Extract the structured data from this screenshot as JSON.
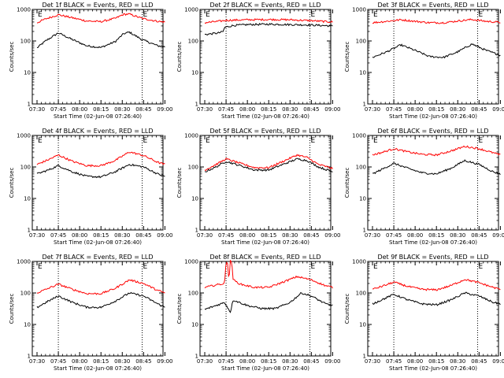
{
  "chart_data": [
    {
      "type": "line",
      "title": "Det 1f BLACK = Events, RED = LLD",
      "xlabel": "Start Time (02-Jun-08 07:26:40)",
      "ylabel": "Counts/sec",
      "y_scale": "log",
      "ylim": [
        1,
        1000
      ],
      "y_ticks": [
        "1",
        "10",
        "100",
        "1000"
      ],
      "x_ticks": [
        "07:30",
        "07:45",
        "08:00",
        "08:15",
        "08:30",
        "08:45",
        "09:00"
      ],
      "xlim_minutes": [
        0,
        92
      ],
      "dotted_lines_at": [
        "07:45",
        "08:44"
      ],
      "markers": [
        {
          "text": "E",
          "at": "07:30"
        },
        {
          "text": "E",
          "at": "08:44"
        }
      ],
      "series": [
        {
          "name": "BLACK = Events",
          "color": "#000000",
          "x": [
            "07:30",
            "07:36",
            "07:45",
            "07:55",
            "08:05",
            "08:15",
            "08:25",
            "08:31",
            "08:35",
            "08:44",
            "08:55",
            "09:00"
          ],
          "y": [
            60,
            100,
            180,
            110,
            70,
            62,
            95,
            170,
            190,
            110,
            70,
            65
          ]
        },
        {
          "name": "RED = LLD",
          "color": "#ff0000",
          "x": [
            "07:30",
            "07:36",
            "07:45",
            "07:55",
            "08:05",
            "08:15",
            "08:25",
            "08:31",
            "08:35",
            "08:44",
            "08:55",
            "09:00"
          ],
          "y": [
            380,
            500,
            680,
            540,
            430,
            410,
            520,
            700,
            710,
            520,
            420,
            400
          ]
        }
      ]
    },
    {
      "type": "line",
      "title": "Det 2f BLACK = Events, RED = LLD",
      "xlabel": "Start Time (02-Jun-08 07:26:40)",
      "ylabel": "Counts/sec",
      "y_scale": "log",
      "ylim": [
        1,
        1000
      ],
      "y_ticks": [
        "1",
        "10",
        "100",
        "1000"
      ],
      "x_ticks": [
        "07:30",
        "07:45",
        "08:00",
        "08:15",
        "08:30",
        "08:45",
        "09:00"
      ],
      "xlim_minutes": [
        0,
        92
      ],
      "dotted_lines_at": [
        "07:45",
        "08:44"
      ],
      "markers": [
        {
          "text": "E",
          "at": "07:30"
        },
        {
          "text": "E",
          "at": "08:44"
        }
      ],
      "series": [
        {
          "name": "BLACK = Events",
          "color": "#000000",
          "x": [
            "07:30",
            "07:40",
            "07:43",
            "07:44",
            "07:50",
            "08:00",
            "08:15",
            "08:30",
            "08:45",
            "09:00"
          ],
          "y": [
            160,
            180,
            200,
            270,
            310,
            330,
            340,
            330,
            320,
            300
          ]
        },
        {
          "name": "RED = LLD",
          "color": "#ff0000",
          "x": [
            "07:30",
            "07:40",
            "07:45",
            "08:00",
            "08:15",
            "08:30",
            "08:45",
            "09:00"
          ],
          "y": [
            380,
            420,
            450,
            470,
            480,
            470,
            440,
            400
          ]
        }
      ]
    },
    {
      "type": "line",
      "title": "Det 3f BLACK = Events, RED = LLD",
      "xlabel": "Start Time (02-Jun-08 07:26:40)",
      "ylabel": "Counts/sec",
      "y_scale": "log",
      "ylim": [
        1,
        1000
      ],
      "y_ticks": [
        "1",
        "10",
        "100",
        "1000"
      ],
      "x_ticks": [
        "07:30",
        "07:45",
        "08:00",
        "08:15",
        "08:30",
        "08:45",
        "09:00"
      ],
      "xlim_minutes": [
        0,
        92
      ],
      "dotted_lines_at": [
        "07:45",
        "08:44"
      ],
      "markers": [
        {
          "text": "E",
          "at": "07:30"
        },
        {
          "text": "E",
          "at": "08:44"
        }
      ],
      "series": [
        {
          "name": "BLACK = Events",
          "color": "#000000",
          "x": [
            "07:30",
            "07:40",
            "07:50",
            "08:00",
            "08:10",
            "08:20",
            "08:30",
            "08:40",
            "08:50",
            "09:00"
          ],
          "y": [
            30,
            45,
            75,
            50,
            32,
            30,
            45,
            80,
            50,
            35
          ]
        },
        {
          "name": "RED = LLD",
          "color": "#ff0000",
          "x": [
            "07:30",
            "07:40",
            "07:50",
            "08:00",
            "08:10",
            "08:20",
            "08:30",
            "08:40",
            "08:50",
            "09:00"
          ],
          "y": [
            380,
            420,
            470,
            420,
            380,
            380,
            430,
            480,
            420,
            390
          ]
        }
      ]
    },
    {
      "type": "line",
      "title": "Det 4f BLACK = Events, RED = LLD",
      "xlabel": "Start Time (02-Jun-08 07:26:40)",
      "ylabel": "Counts/sec",
      "y_scale": "log",
      "ylim": [
        1,
        1000
      ],
      "y_ticks": [
        "1",
        "10",
        "100",
        "1000"
      ],
      "x_ticks": [
        "07:30",
        "07:45",
        "08:00",
        "08:15",
        "08:30",
        "08:45",
        "09:00"
      ],
      "xlim_minutes": [
        0,
        92
      ],
      "dotted_lines_at": [
        "07:45",
        "08:44"
      ],
      "markers": [
        {
          "text": "E",
          "at": "07:30"
        },
        {
          "text": "E",
          "at": "08:44"
        }
      ],
      "series": [
        {
          "name": "BLACK = Events",
          "color": "#000000",
          "x": [
            "07:30",
            "07:38",
            "07:45",
            "07:55",
            "08:05",
            "08:15",
            "08:25",
            "08:35",
            "08:45",
            "08:55",
            "09:00"
          ],
          "y": [
            60,
            80,
            110,
            70,
            50,
            48,
            70,
            120,
            100,
            60,
            50
          ]
        },
        {
          "name": "RED = LLD",
          "color": "#ff0000",
          "x": [
            "07:30",
            "07:38",
            "07:45",
            "07:55",
            "08:05",
            "08:15",
            "08:25",
            "08:35",
            "08:45",
            "08:55",
            "09:00"
          ],
          "y": [
            120,
            170,
            240,
            150,
            110,
            110,
            160,
            300,
            230,
            140,
            120
          ]
        }
      ]
    },
    {
      "type": "line",
      "title": "Det 5f BLACK = Events, RED = LLD",
      "xlabel": "Start Time (02-Jun-08 07:26:40)",
      "ylabel": "Counts/sec",
      "y_scale": "log",
      "ylim": [
        1,
        1000
      ],
      "y_ticks": [
        "1",
        "10",
        "100",
        "1000"
      ],
      "x_ticks": [
        "07:30",
        "07:45",
        "08:00",
        "08:15",
        "08:30",
        "08:45",
        "09:00"
      ],
      "xlim_minutes": [
        0,
        92
      ],
      "dotted_lines_at": [
        "07:45",
        "08:44"
      ],
      "markers": [
        {
          "text": "E",
          "at": "07:30"
        },
        {
          "text": "E",
          "at": "08:44"
        }
      ],
      "series": [
        {
          "name": "BLACK = Events",
          "color": "#000000",
          "x": [
            "07:30",
            "07:38",
            "07:45",
            "07:55",
            "08:05",
            "08:15",
            "08:25",
            "08:35",
            "08:42",
            "08:50",
            "09:00"
          ],
          "y": [
            70,
            100,
            150,
            110,
            80,
            80,
            120,
            180,
            160,
            100,
            70
          ]
        },
        {
          "name": "RED = LLD",
          "color": "#ff0000",
          "x": [
            "07:30",
            "07:38",
            "07:45",
            "07:55",
            "08:05",
            "08:15",
            "08:25",
            "08:35",
            "08:42",
            "08:50",
            "09:00"
          ],
          "y": [
            80,
            120,
            180,
            130,
            95,
            95,
            150,
            240,
            200,
            120,
            90
          ]
        }
      ]
    },
    {
      "type": "line",
      "title": "Det 6f BLACK = Events, RED = LLD",
      "xlabel": "Start Time (02-Jun-08 07:26:40)",
      "ylabel": "Counts/sec",
      "y_scale": "log",
      "ylim": [
        1,
        1000
      ],
      "y_ticks": [
        "1",
        "10",
        "100",
        "1000"
      ],
      "x_ticks": [
        "07:30",
        "07:45",
        "08:00",
        "08:15",
        "08:30",
        "08:45",
        "09:00"
      ],
      "xlim_minutes": [
        0,
        92
      ],
      "dotted_lines_at": [
        "07:45",
        "08:44"
      ],
      "markers": [
        {
          "text": "E",
          "at": "07:30"
        },
        {
          "text": "E",
          "at": "08:44"
        }
      ],
      "series": [
        {
          "name": "BLACK = Events",
          "color": "#000000",
          "x": [
            "07:30",
            "07:38",
            "07:45",
            "07:55",
            "08:05",
            "08:15",
            "08:25",
            "08:35",
            "08:45",
            "08:55",
            "09:00"
          ],
          "y": [
            60,
            90,
            130,
            90,
            65,
            60,
            90,
            160,
            120,
            70,
            60
          ]
        },
        {
          "name": "RED = LLD",
          "color": "#ff0000",
          "x": [
            "07:30",
            "07:38",
            "07:45",
            "07:55",
            "08:05",
            "08:15",
            "08:25",
            "08:35",
            "08:45",
            "08:55",
            "09:00"
          ],
          "y": [
            240,
            300,
            380,
            300,
            250,
            240,
            320,
            450,
            380,
            280,
            240
          ]
        }
      ]
    },
    {
      "type": "line",
      "title": "Det 7f BLACK = Events, RED = LLD",
      "xlabel": "Start Time (02-Jun-08 07:26:40)",
      "ylabel": "Counts/sec",
      "y_scale": "log",
      "ylim": [
        1,
        1000
      ],
      "y_ticks": [
        "1",
        "10",
        "100",
        "1000"
      ],
      "x_ticks": [
        "07:30",
        "07:45",
        "08:00",
        "08:15",
        "08:30",
        "08:45",
        "09:00"
      ],
      "xlim_minutes": [
        0,
        92
      ],
      "dotted_lines_at": [
        "07:45",
        "08:44"
      ],
      "markers": [
        {
          "text": "E",
          "at": "07:30"
        },
        {
          "text": "E",
          "at": "08:44"
        }
      ],
      "series": [
        {
          "name": "BLACK = Events",
          "color": "#000000",
          "x": [
            "07:30",
            "07:38",
            "07:45",
            "07:55",
            "08:05",
            "08:15",
            "08:25",
            "08:35",
            "08:45",
            "08:55",
            "09:00"
          ],
          "y": [
            35,
            55,
            80,
            50,
            35,
            35,
            55,
            100,
            80,
            45,
            35
          ]
        },
        {
          "name": "RED = LLD",
          "color": "#ff0000",
          "x": [
            "07:30",
            "07:38",
            "07:45",
            "07:55",
            "08:05",
            "08:15",
            "08:25",
            "08:35",
            "08:45",
            "08:55",
            "09:00"
          ],
          "y": [
            100,
            140,
            190,
            130,
            95,
            95,
            140,
            260,
            200,
            120,
            100
          ]
        }
      ]
    },
    {
      "type": "line",
      "title": "Det 8f BLACK = Events, RED = LLD",
      "xlabel": "Start Time (02-Jun-08 07:26:40)",
      "ylabel": "Counts/sec",
      "y_scale": "log",
      "ylim": [
        1,
        1000
      ],
      "y_ticks": [
        "1",
        "10",
        "100",
        "1000"
      ],
      "x_ticks": [
        "07:30",
        "07:45",
        "08:00",
        "08:15",
        "08:30",
        "08:45",
        "09:00"
      ],
      "xlim_minutes": [
        0,
        92
      ],
      "dotted_lines_at": [
        "07:45",
        "08:44"
      ],
      "markers": [
        {
          "text": "E",
          "at": "07:30"
        },
        {
          "text": "E",
          "at": "08:44"
        }
      ],
      "series": [
        {
          "name": "BLACK = Events",
          "color": "#000000",
          "x": [
            "07:30",
            "07:38",
            "07:44",
            "07:46",
            "07:48",
            "07:50",
            "07:52",
            "08:00",
            "08:10",
            "08:20",
            "08:30",
            "08:38",
            "08:45",
            "08:55",
            "09:00"
          ],
          "y": [
            30,
            40,
            50,
            35,
            25,
            60,
            55,
            40,
            32,
            32,
            50,
            100,
            80,
            45,
            40
          ]
        },
        {
          "name": "RED = LLD",
          "color": "#ff0000",
          "x": [
            "07:30",
            "07:38",
            "07:44",
            "07:45",
            "07:46",
            "07:47",
            "07:48",
            "07:49",
            "07:50",
            "07:55",
            "08:05",
            "08:15",
            "08:25",
            "08:35",
            "08:45",
            "08:55",
            "09:00"
          ],
          "y": [
            150,
            180,
            200,
            1000,
            1000,
            230,
            1000,
            1000,
            260,
            190,
            150,
            150,
            220,
            330,
            260,
            170,
            150
          ]
        }
      ]
    },
    {
      "type": "line",
      "title": "Det 9f BLACK = Events, RED = LLD",
      "xlabel": "Start Time (02-Jun-08 07:26:40)",
      "ylabel": "Counts/sec",
      "y_scale": "log",
      "ylim": [
        1,
        1000
      ],
      "y_ticks": [
        "1",
        "10",
        "100",
        "1000"
      ],
      "x_ticks": [
        "07:30",
        "07:45",
        "08:00",
        "08:15",
        "08:30",
        "08:45",
        "09:00"
      ],
      "xlim_minutes": [
        0,
        92
      ],
      "dotted_lines_at": [
        "07:45",
        "08:44"
      ],
      "markers": [
        {
          "text": "E",
          "at": "07:30"
        },
        {
          "text": "E",
          "at": "08:44"
        }
      ],
      "series": [
        {
          "name": "BLACK = Events",
          "color": "#000000",
          "x": [
            "07:30",
            "07:38",
            "07:45",
            "07:55",
            "08:05",
            "08:15",
            "08:25",
            "08:35",
            "08:45",
            "08:55",
            "09:00"
          ],
          "y": [
            45,
            65,
            90,
            60,
            45,
            42,
            60,
            100,
            80,
            50,
            45
          ]
        },
        {
          "name": "RED = LLD",
          "color": "#ff0000",
          "x": [
            "07:30",
            "07:38",
            "07:45",
            "07:55",
            "08:05",
            "08:15",
            "08:25",
            "08:35",
            "08:45",
            "08:55",
            "09:00"
          ],
          "y": [
            130,
            170,
            220,
            160,
            130,
            125,
            170,
            270,
            210,
            150,
            130
          ]
        }
      ]
    }
  ]
}
